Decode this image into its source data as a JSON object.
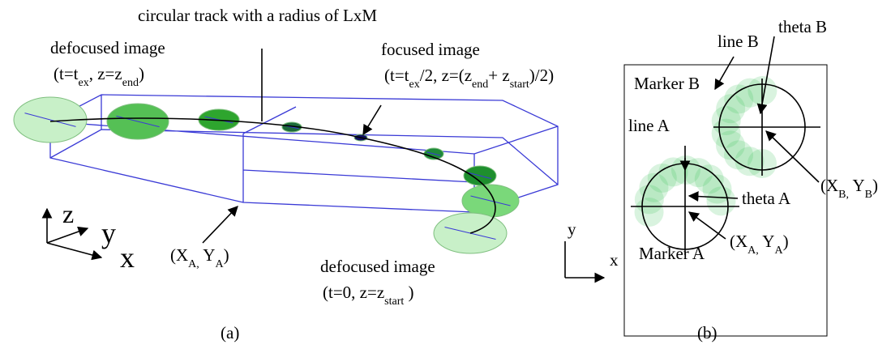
{
  "panel_a": {
    "track_label": "circular track with a radius of LxM",
    "defocused_end": {
      "title": "defocused image",
      "params": [
        "(t=t",
        "ex",
        ", z=z",
        "end",
        ")"
      ]
    },
    "focused": {
      "title": "focused image",
      "params": [
        "(t=t",
        "ex",
        "/2, z=(z",
        "end",
        "+ z",
        "start",
        ")/2)"
      ]
    },
    "defocused_start": {
      "title": "defocused image",
      "params": [
        "(t=0, z=z",
        "start",
        " )"
      ]
    },
    "origin": [
      "(X",
      "A,",
      " Y",
      "A",
      ")"
    ],
    "axes": {
      "z": "z",
      "y": "y",
      "x": "x"
    },
    "caption": "(a)"
  },
  "panel_b": {
    "marker_b": "Marker B",
    "marker_a": "Marker A",
    "line_b": "line B",
    "theta_b": "theta B",
    "line_a": "line A",
    "theta_a": "theta A",
    "point_b": [
      "(X",
      "B,",
      " Y",
      "B",
      ")"
    ],
    "point_a": [
      "(X",
      "A,",
      " Y",
      "A",
      ")"
    ],
    "axes": {
      "y": "y",
      "x": "x"
    },
    "caption": "(b)"
  }
}
